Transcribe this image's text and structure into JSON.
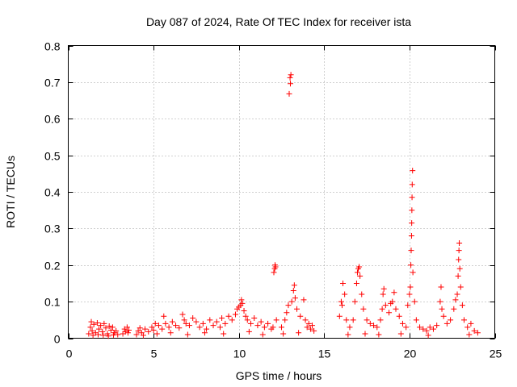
{
  "chart_data": {
    "type": "scatter",
    "title": "Day 087 of 2024, Rate Of TEC Index for receiver ista",
    "xlabel": "GPS time / hours",
    "ylabel": "ROTI / TECUs",
    "xlim": [
      0,
      25
    ],
    "ylim": [
      0,
      0.8
    ],
    "xticks": [
      0,
      5,
      10,
      15,
      20,
      25
    ],
    "xtick_labels": [
      "0",
      "5",
      "10",
      "15",
      "20",
      "25"
    ],
    "yticks": [
      0,
      0.1,
      0.2,
      0.3,
      0.4,
      0.5,
      0.6,
      0.7,
      0.8
    ],
    "ytick_labels": [
      "0",
      "0.1",
      "0.2",
      "0.3",
      "0.4",
      "0.5",
      "0.6",
      "0.7",
      "0.8"
    ],
    "grid": true,
    "marker": "plus",
    "color": "#ff0000",
    "series": [
      {
        "name": "ROTI",
        "points": [
          [
            1.2,
            0.012
          ],
          [
            1.3,
            0.03
          ],
          [
            1.35,
            0.045
          ],
          [
            1.4,
            0.02
          ],
          [
            1.5,
            0.038
          ],
          [
            1.6,
            0.015
          ],
          [
            1.7,
            0.042
          ],
          [
            1.8,
            0.025
          ],
          [
            1.9,
            0.035
          ],
          [
            2.0,
            0.018
          ],
          [
            2.1,
            0.04
          ],
          [
            2.2,
            0.028
          ],
          [
            2.3,
            0.012
          ],
          [
            2.4,
            0.033
          ],
          [
            2.5,
            0.022
          ],
          [
            2.6,
            0.03
          ],
          [
            2.7,
            0.015
          ],
          [
            2.8,
            0.02
          ],
          [
            2.9,
            0.01
          ],
          [
            1.45,
            0.008
          ],
          [
            1.75,
            0.01
          ],
          [
            2.05,
            0.008
          ],
          [
            2.35,
            0.006
          ],
          [
            2.65,
            0.009
          ],
          [
            3.2,
            0.012
          ],
          [
            3.3,
            0.025
          ],
          [
            3.35,
            0.018
          ],
          [
            3.45,
            0.03
          ],
          [
            3.5,
            0.015
          ],
          [
            3.55,
            0.022
          ],
          [
            4.0,
            0.01
          ],
          [
            4.1,
            0.02
          ],
          [
            4.2,
            0.028
          ],
          [
            4.3,
            0.015
          ],
          [
            4.5,
            0.025
          ],
          [
            4.7,
            0.018
          ],
          [
            4.9,
            0.03
          ],
          [
            5.0,
            0.022
          ],
          [
            5.1,
            0.04
          ],
          [
            5.3,
            0.035
          ],
          [
            5.5,
            0.025
          ],
          [
            5.6,
            0.06
          ],
          [
            5.7,
            0.04
          ],
          [
            5.9,
            0.03
          ],
          [
            6.1,
            0.045
          ],
          [
            6.3,
            0.035
          ],
          [
            6.5,
            0.028
          ],
          [
            6.7,
            0.065
          ],
          [
            6.8,
            0.05
          ],
          [
            6.9,
            0.04
          ],
          [
            7.1,
            0.035
          ],
          [
            7.3,
            0.055
          ],
          [
            7.5,
            0.045
          ],
          [
            7.7,
            0.03
          ],
          [
            7.9,
            0.04
          ],
          [
            8.1,
            0.025
          ],
          [
            8.3,
            0.05
          ],
          [
            8.5,
            0.035
          ],
          [
            8.7,
            0.045
          ],
          [
            8.9,
            0.03
          ],
          [
            9.0,
            0.055
          ],
          [
            9.2,
            0.04
          ],
          [
            9.4,
            0.06
          ],
          [
            9.6,
            0.05
          ],
          [
            9.8,
            0.065
          ],
          [
            9.9,
            0.08
          ],
          [
            10.0,
            0.085
          ],
          [
            10.1,
            0.09
          ],
          [
            10.15,
            0.105
          ],
          [
            10.2,
            0.095
          ],
          [
            10.3,
            0.075
          ],
          [
            10.4,
            0.06
          ],
          [
            10.5,
            0.05
          ],
          [
            10.7,
            0.04
          ],
          [
            10.9,
            0.055
          ],
          [
            11.1,
            0.035
          ],
          [
            11.3,
            0.045
          ],
          [
            11.5,
            0.03
          ],
          [
            11.7,
            0.04
          ],
          [
            11.9,
            0.025
          ],
          [
            4.4,
            0.008
          ],
          [
            5.2,
            0.012
          ],
          [
            6.0,
            0.015
          ],
          [
            7.0,
            0.01
          ],
          [
            8.0,
            0.015
          ],
          [
            9.1,
            0.012
          ],
          [
            10.6,
            0.018
          ],
          [
            11.4,
            0.01
          ],
          [
            12.05,
            0.18
          ],
          [
            12.1,
            0.19
          ],
          [
            12.12,
            0.2
          ],
          [
            12.15,
            0.195
          ],
          [
            12.0,
            0.03
          ],
          [
            12.2,
            0.05
          ],
          [
            12.5,
            0.03
          ],
          [
            12.7,
            0.05
          ],
          [
            12.8,
            0.07
          ],
          [
            12.9,
            0.09
          ],
          [
            12.95,
            0.668
          ],
          [
            13.0,
            0.712
          ],
          [
            13.02,
            0.696
          ],
          [
            13.05,
            0.72
          ],
          [
            13.1,
            0.1
          ],
          [
            13.2,
            0.13
          ],
          [
            13.25,
            0.145
          ],
          [
            13.3,
            0.11
          ],
          [
            13.4,
            0.08
          ],
          [
            13.6,
            0.06
          ],
          [
            13.8,
            0.105
          ],
          [
            13.9,
            0.05
          ],
          [
            14.0,
            0.03
          ],
          [
            14.1,
            0.04
          ],
          [
            14.2,
            0.025
          ],
          [
            14.3,
            0.035
          ],
          [
            14.4,
            0.02
          ],
          [
            12.6,
            0.012
          ],
          [
            13.5,
            0.015
          ],
          [
            15.9,
            0.06
          ],
          [
            16.0,
            0.1
          ],
          [
            16.05,
            0.09
          ],
          [
            16.1,
            0.15
          ],
          [
            16.2,
            0.12
          ],
          [
            16.3,
            0.05
          ],
          [
            16.5,
            0.03
          ],
          [
            16.7,
            0.05
          ],
          [
            16.8,
            0.1
          ],
          [
            16.9,
            0.15
          ],
          [
            16.95,
            0.18
          ],
          [
            17.0,
            0.19
          ],
          [
            17.05,
            0.195
          ],
          [
            17.1,
            0.17
          ],
          [
            17.2,
            0.12
          ],
          [
            17.3,
            0.08
          ],
          [
            17.5,
            0.05
          ],
          [
            17.7,
            0.04
          ],
          [
            17.9,
            0.035
          ],
          [
            18.1,
            0.03
          ],
          [
            18.3,
            0.05
          ],
          [
            18.4,
            0.08
          ],
          [
            18.45,
            0.12
          ],
          [
            18.5,
            0.135
          ],
          [
            18.6,
            0.09
          ],
          [
            18.8,
            0.07
          ],
          [
            18.9,
            0.095
          ],
          [
            19.0,
            0.1
          ],
          [
            19.1,
            0.125
          ],
          [
            19.2,
            0.08
          ],
          [
            19.4,
            0.06
          ],
          [
            19.6,
            0.04
          ],
          [
            19.8,
            0.03
          ],
          [
            19.9,
            0.09
          ],
          [
            20.0,
            0.12
          ],
          [
            20.05,
            0.14
          ],
          [
            20.08,
            0.2
          ],
          [
            20.1,
            0.24
          ],
          [
            20.12,
            0.28
          ],
          [
            20.13,
            0.315
          ],
          [
            20.14,
            0.35
          ],
          [
            20.15,
            0.385
          ],
          [
            20.16,
            0.42
          ],
          [
            20.18,
            0.458
          ],
          [
            20.2,
            0.18
          ],
          [
            20.3,
            0.1
          ],
          [
            20.4,
            0.05
          ],
          [
            20.6,
            0.03
          ],
          [
            20.8,
            0.025
          ],
          [
            21.0,
            0.02
          ],
          [
            21.2,
            0.03
          ],
          [
            21.4,
            0.025
          ],
          [
            21.6,
            0.035
          ],
          [
            21.8,
            0.1
          ],
          [
            21.85,
            0.14
          ],
          [
            21.9,
            0.08
          ],
          [
            22.0,
            0.06
          ],
          [
            22.2,
            0.04
          ],
          [
            22.4,
            0.05
          ],
          [
            22.6,
            0.08
          ],
          [
            22.7,
            0.105
          ],
          [
            22.8,
            0.12
          ],
          [
            22.85,
            0.17
          ],
          [
            22.88,
            0.215
          ],
          [
            22.9,
            0.24
          ],
          [
            22.92,
            0.26
          ],
          [
            22.95,
            0.19
          ],
          [
            23.0,
            0.14
          ],
          [
            23.1,
            0.09
          ],
          [
            23.2,
            0.05
          ],
          [
            23.4,
            0.03
          ],
          [
            23.6,
            0.04
          ],
          [
            23.8,
            0.02
          ],
          [
            24.0,
            0.015
          ],
          [
            16.4,
            0.01
          ],
          [
            17.4,
            0.012
          ],
          [
            18.2,
            0.01
          ],
          [
            19.5,
            0.012
          ],
          [
            21.1,
            0.008
          ],
          [
            23.5,
            0.01
          ]
        ]
      }
    ]
  }
}
